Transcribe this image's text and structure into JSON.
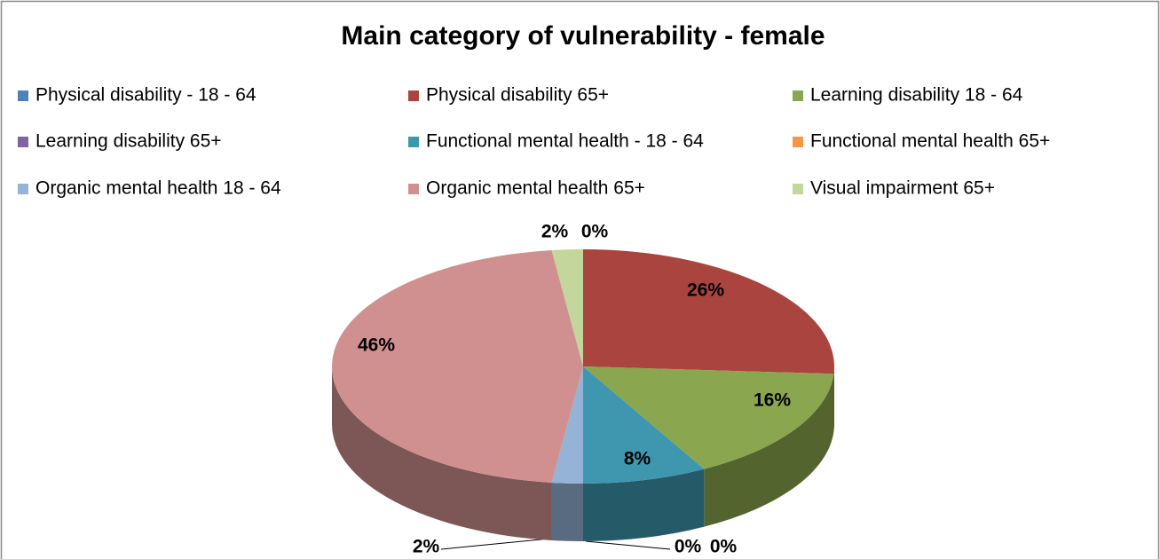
{
  "chart_data": {
    "type": "pie",
    "title": "Main category of vulnerability - female",
    "categories": [
      "Physical disability - 18 - 64",
      "Physical disability 65+",
      "Learning disability 18 - 64",
      "Learning disability 65+",
      "Functional mental health - 18 - 64",
      "Functional mental health 65+",
      "Organic mental health 18 - 64",
      "Organic mental health 65+",
      "Visual impairment 65+"
    ],
    "values": [
      0,
      26,
      16,
      0,
      8,
      0,
      2,
      46,
      2
    ],
    "value_labels": [
      "0%",
      "26%",
      "16%",
      "0%",
      "8%",
      "0%",
      "2%",
      "46%",
      "2%"
    ],
    "colors": [
      "#4f81bd",
      "#a9443f",
      "#8aa64f",
      "#8064a2",
      "#3e97ae",
      "#f79646",
      "#95b3d7",
      "#d09090",
      "#c3d69b"
    ]
  }
}
